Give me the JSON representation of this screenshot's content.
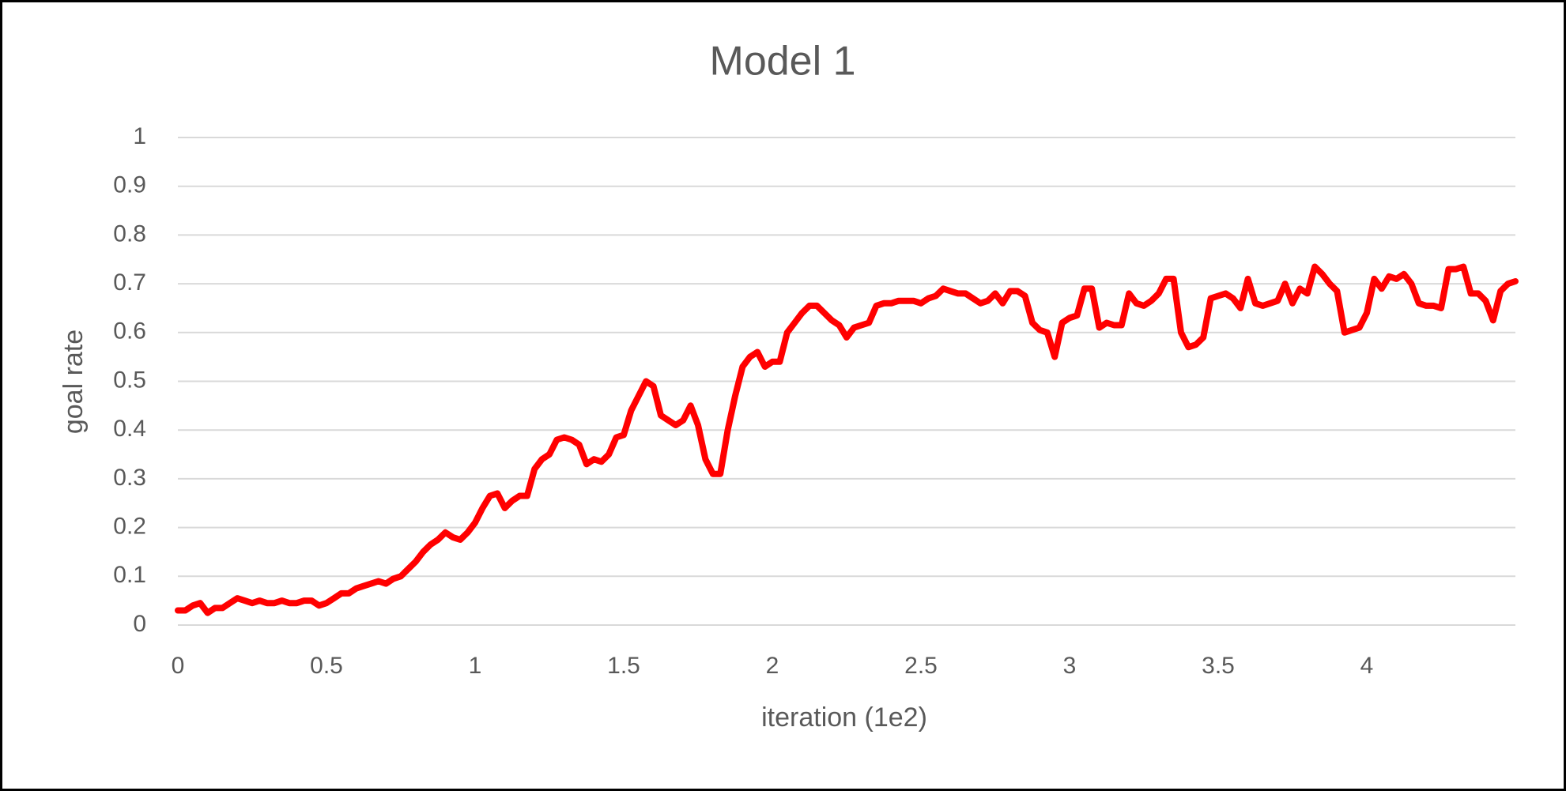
{
  "chart_data": {
    "type": "line",
    "title": "Model 1",
    "xlabel": "iteration (1e2)",
    "ylabel": "goal rate",
    "color": "#ff0000",
    "grid": true,
    "x": [
      0,
      0.025,
      0.05,
      0.075,
      0.1,
      0.125,
      0.15,
      0.175,
      0.2,
      0.225,
      0.25,
      0.275,
      0.3,
      0.325,
      0.35,
      0.375,
      0.4,
      0.425,
      0.45,
      0.475,
      0.5,
      0.525,
      0.55,
      0.575,
      0.6,
      0.625,
      0.65,
      0.675,
      0.7,
      0.725,
      0.75,
      0.775,
      0.8,
      0.825,
      0.85,
      0.875,
      0.9,
      0.925,
      0.95,
      0.975,
      1,
      1.025,
      1.05,
      1.075,
      1.1,
      1.125,
      1.15,
      1.175,
      1.2,
      1.225,
      1.25,
      1.275,
      1.3,
      1.325,
      1.35,
      1.375,
      1.4,
      1.425,
      1.45,
      1.475,
      1.5,
      1.525,
      1.55,
      1.575,
      1.6,
      1.625,
      1.65,
      1.675,
      1.7,
      1.725,
      1.75,
      1.775,
      1.8,
      1.825,
      1.85,
      1.875,
      1.9,
      1.925,
      1.95,
      1.975,
      2,
      2.025,
      2.05,
      2.075,
      2.1,
      2.125,
      2.15,
      2.175,
      2.2,
      2.225,
      2.25,
      2.275,
      2.3,
      2.325,
      2.35,
      2.375,
      2.4,
      2.425,
      2.45,
      2.475,
      2.5,
      2.525,
      2.55,
      2.575,
      2.6,
      2.625,
      2.65,
      2.675,
      2.7,
      2.725,
      2.75,
      2.775,
      2.8,
      2.825,
      2.85,
      2.875,
      2.9,
      2.925,
      2.95,
      2.975,
      3,
      3.025,
      3.05,
      3.075,
      3.1,
      3.125,
      3.15,
      3.175,
      3.2,
      3.225,
      3.25,
      3.275,
      3.3,
      3.325,
      3.35,
      3.375,
      3.4,
      3.425,
      3.45,
      3.475,
      3.5,
      3.525,
      3.55,
      3.575,
      3.6,
      3.625,
      3.65,
      3.675,
      3.7,
      3.725,
      3.75,
      3.775,
      3.8,
      3.825,
      3.85,
      3.875,
      3.9,
      3.925,
      3.95,
      3.975,
      4,
      4.025,
      4.05,
      4.075,
      4.1,
      4.125,
      4.15,
      4.175,
      4.2,
      4.225,
      4.25,
      4.275,
      4.3,
      4.325,
      4.35,
      4.375,
      4.4,
      4.425,
      4.45,
      4.475,
      4.5
    ],
    "values": [
      0.03,
      0.03,
      0.04,
      0.045,
      0.025,
      0.035,
      0.035,
      0.045,
      0.055,
      0.05,
      0.045,
      0.05,
      0.045,
      0.045,
      0.05,
      0.045,
      0.045,
      0.05,
      0.05,
      0.04,
      0.045,
      0.055,
      0.065,
      0.065,
      0.075,
      0.08,
      0.085,
      0.09,
      0.085,
      0.095,
      0.1,
      0.115,
      0.13,
      0.15,
      0.165,
      0.175,
      0.19,
      0.18,
      0.175,
      0.19,
      0.21,
      0.24,
      0.265,
      0.27,
      0.24,
      0.255,
      0.265,
      0.265,
      0.32,
      0.34,
      0.35,
      0.38,
      0.385,
      0.38,
      0.37,
      0.33,
      0.34,
      0.335,
      0.35,
      0.385,
      0.39,
      0.44,
      0.47,
      0.5,
      0.49,
      0.43,
      0.42,
      0.41,
      0.42,
      0.45,
      0.41,
      0.34,
      0.31,
      0.31,
      0.4,
      0.47,
      0.53,
      0.55,
      0.56,
      0.53,
      0.54,
      0.54,
      0.6,
      0.62,
      0.64,
      0.655,
      0.655,
      0.64,
      0.625,
      0.615,
      0.59,
      0.61,
      0.615,
      0.62,
      0.655,
      0.66,
      0.66,
      0.665,
      0.665,
      0.665,
      0.66,
      0.67,
      0.675,
      0.69,
      0.685,
      0.68,
      0.68,
      0.67,
      0.66,
      0.665,
      0.68,
      0.66,
      0.685,
      0.685,
      0.675,
      0.62,
      0.605,
      0.6,
      0.55,
      0.62,
      0.63,
      0.635,
      0.69,
      0.69,
      0.61,
      0.62,
      0.615,
      0.615,
      0.68,
      0.66,
      0.655,
      0.665,
      0.68,
      0.71,
      0.71,
      0.6,
      0.57,
      0.575,
      0.59,
      0.67,
      0.675,
      0.68,
      0.67,
      0.65,
      0.71,
      0.66,
      0.655,
      0.66,
      0.665,
      0.7,
      0.66,
      0.69,
      0.68,
      0.735,
      0.72,
      0.7,
      0.685,
      0.6,
      0.605,
      0.61,
      0.64,
      0.71,
      0.69,
      0.715,
      0.71,
      0.72,
      0.7,
      0.66,
      0.655,
      0.655,
      0.65,
      0.73,
      0.73,
      0.735,
      0.68,
      0.68,
      0.665,
      0.625,
      0.685,
      0.7,
      0.705
    ],
    "xlim": [
      0,
      4.5
    ],
    "xticks": [
      0,
      0.5,
      1,
      1.5,
      2,
      2.5,
      3,
      3.5,
      4
    ],
    "ylim": [
      0,
      1
    ],
    "yticks": [
      0,
      0.1,
      0.2,
      0.3,
      0.4,
      0.5,
      0.6,
      0.7,
      0.8,
      0.9,
      1
    ]
  }
}
